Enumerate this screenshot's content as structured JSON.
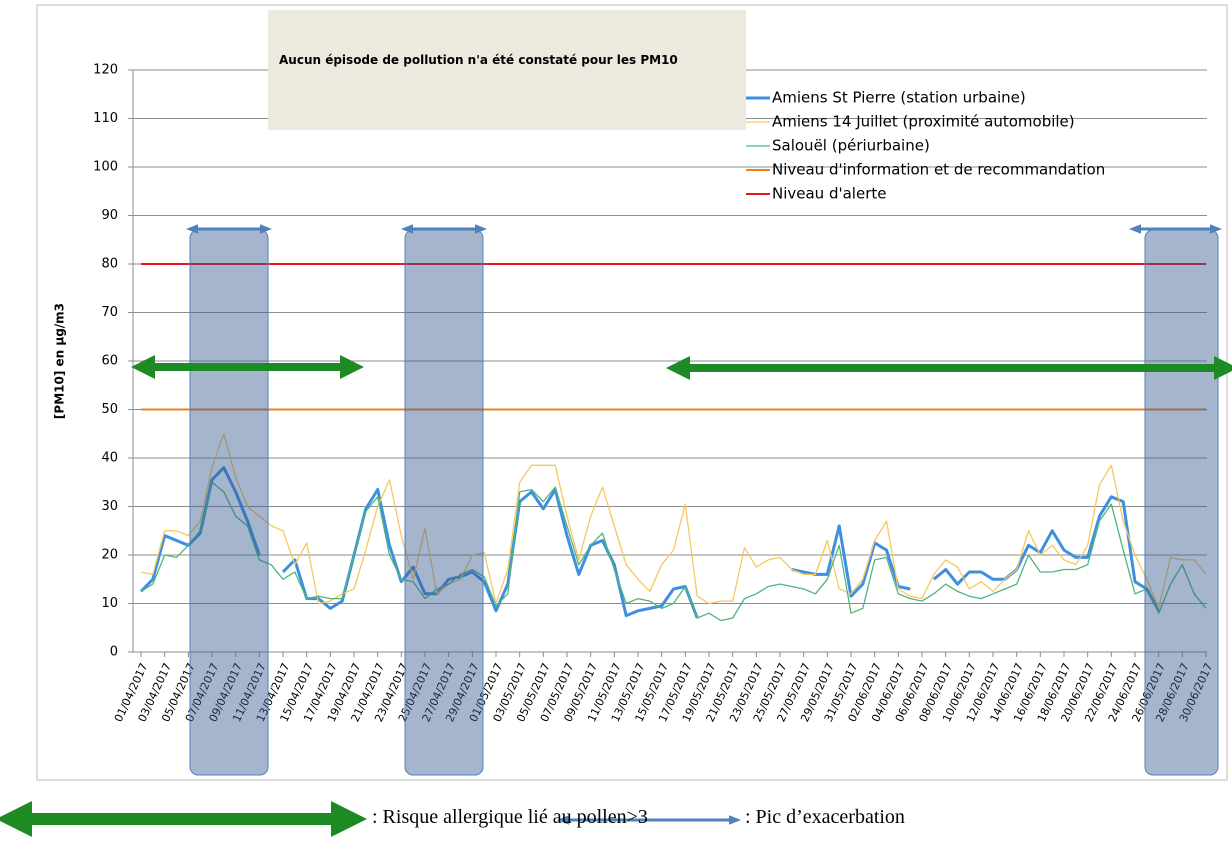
{
  "chart_data": {
    "type": "line",
    "note": "Aucun épisode de pollution n'a été constaté pour les PM10",
    "y_label": "[PM10] en µg/m3",
    "categories": [
      "01/04/2017",
      null,
      "03/04/2017",
      null,
      "05/04/2017",
      null,
      "07/04/2017",
      null,
      "09/04/2017",
      null,
      "11/04/2017",
      null,
      "13/04/2017",
      null,
      "15/04/2017",
      null,
      "17/04/2017",
      null,
      "19/04/2017",
      null,
      "21/04/2017",
      null,
      "23/04/2017",
      null,
      "25/04/2017",
      null,
      "27/04/2017",
      null,
      "29/04/2017",
      null,
      "01/05/2017",
      null,
      "03/05/2017",
      null,
      "05/05/2017",
      null,
      "07/05/2017",
      null,
      "09/05/2017",
      null,
      "11/05/2017",
      null,
      "13/05/2017",
      null,
      "15/05/2017",
      null,
      "17/05/2017",
      null,
      "19/05/2017",
      null,
      "21/05/2017",
      null,
      "23/05/2017",
      null,
      "25/05/2017",
      null,
      "27/05/2017",
      null,
      "29/05/2017",
      null,
      "31/05/2017",
      null,
      "02/06/2017",
      null,
      "04/06/2017",
      null,
      "06/06/2017",
      null,
      "08/06/2017",
      null,
      "10/06/2017",
      null,
      "12/06/2017",
      null,
      "14/06/2017",
      null,
      "16/06/2017",
      null,
      "18/06/2017",
      null,
      "20/06/2017",
      null,
      "22/06/2017",
      null,
      "24/06/2017",
      null,
      "26/06/2017",
      null,
      "28/06/2017",
      null,
      "30/06/2017"
    ],
    "series": [
      {
        "name": "Amiens St Pierre (station urbaine)",
        "color": "#3d8fe0",
        "width": 3,
        "values": [
          12.5,
          15,
          24,
          23,
          22,
          24.5,
          35.5,
          38,
          33,
          27,
          20,
          null,
          16.5,
          19,
          11,
          11,
          9,
          10.5,
          20,
          29.5,
          33.5,
          22,
          14.5,
          17.5,
          12,
          12,
          15,
          15.5,
          16.5,
          14.5,
          8.5,
          14,
          31,
          33,
          29.5,
          33.5,
          24,
          16,
          22,
          23,
          18,
          7.5,
          8.5,
          9,
          9.5,
          13,
          13.5,
          7,
          null,
          null,
          null,
          null,
          null,
          null,
          null,
          17,
          16.5,
          16,
          16,
          26,
          11.5,
          14,
          22.5,
          21,
          13.5,
          13,
          null,
          15,
          17,
          14,
          16.5,
          16.5,
          15,
          15,
          17,
          22,
          20.5,
          25,
          21,
          19.5,
          19.5,
          28,
          32,
          31,
          14.5,
          13,
          8.5,
          null,
          null,
          null,
          null
        ]
      },
      {
        "name": "Amiens 14 Juillet (proximité automobile)",
        "color": "#f7c75f",
        "width": 1.3,
        "values": [
          16.5,
          16,
          25,
          25,
          24,
          27,
          38,
          45,
          36,
          30,
          28,
          26,
          25,
          18,
          22.5,
          10,
          10.5,
          12,
          13,
          21,
          30,
          35.5,
          24,
          15,
          25.5,
          12,
          14,
          15,
          20,
          20.5,
          10,
          17,
          35,
          38.5,
          38.5,
          38.5,
          28,
          19,
          28,
          34,
          26,
          18,
          15,
          12.5,
          18,
          21,
          30.5,
          11.5,
          10,
          10.5,
          10.5,
          21.5,
          17.5,
          19,
          19.5,
          17,
          16,
          16,
          23,
          13,
          12,
          15,
          23,
          27,
          13,
          11.5,
          11,
          16,
          19,
          17.5,
          13,
          14.5,
          12.5,
          15,
          17,
          25,
          20,
          22,
          19,
          18,
          22,
          34.5,
          38.5,
          27,
          20,
          15,
          9,
          19.5,
          19,
          19,
          16
        ]
      },
      {
        "name": "Salouël (périurbaine)",
        "color": "#4fb57a",
        "width": 1.3,
        "values": [
          12.5,
          14,
          20,
          19.5,
          22,
          25,
          35,
          33,
          28,
          26,
          19,
          18,
          15,
          16.5,
          11,
          11.5,
          11,
          11,
          20,
          29,
          32,
          20,
          15,
          14.5,
          11,
          13,
          14,
          16,
          17,
          15.5,
          9.5,
          12,
          33,
          33.5,
          31,
          34,
          26,
          18,
          22,
          24.5,
          17,
          10,
          11,
          10.5,
          9,
          10,
          13.5,
          7,
          8,
          6.5,
          7,
          11,
          12,
          13.5,
          14,
          13.5,
          13,
          12,
          15,
          22,
          8,
          9,
          19,
          19.5,
          12,
          11,
          10.5,
          12,
          14,
          12.5,
          11.5,
          11,
          12,
          13,
          14,
          20,
          16.5,
          16.5,
          17,
          17,
          18,
          27,
          30.5,
          21,
          12,
          13,
          8,
          14,
          18,
          12,
          9
        ]
      }
    ],
    "reference_lines": [
      {
        "name": "Niveau d'information et de recommandation",
        "color": "#f07f1e",
        "value": 50
      },
      {
        "name": "Niveau d'alerte",
        "color": "#e8141e",
        "value": 80
      }
    ],
    "ylim": [
      0,
      120
    ],
    "yticks": [
      0,
      10,
      20,
      30,
      40,
      50,
      60,
      70,
      80,
      90,
      100,
      110,
      120
    ],
    "grid": true,
    "legend": "top-right",
    "key": {
      "pollen": ": Risque allergique lié au pollen>3",
      "peak": ": Pic d’exacerbation"
    }
  }
}
